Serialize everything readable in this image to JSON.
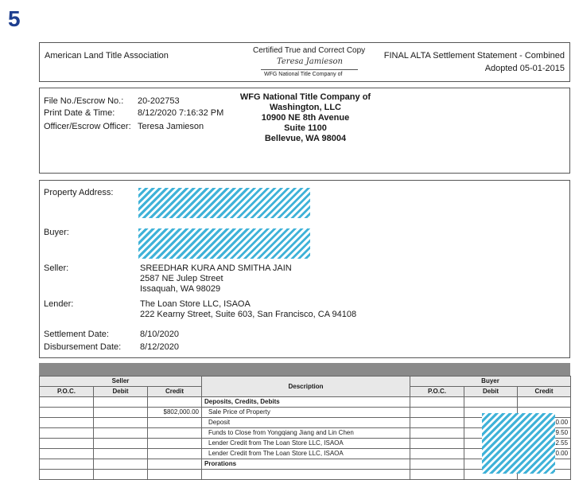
{
  "page_number": "5",
  "header": {
    "org": "American Land Title Association",
    "cert_title": "Certified True and Correct Copy",
    "cert_signature": "Teresa Jamieson",
    "cert_company": "WFG National Title Company of",
    "statement_title": "FINAL ALTA Settlement Statement - Combined",
    "adopted": "Adopted 05-01-2015"
  },
  "file_info": {
    "file_no_label": "File No./Escrow No.:",
    "file_no": "20-202753",
    "print_date_label": "Print Date & Time:",
    "print_date": "8/12/2020 7:16:32 PM",
    "officer_label": "Officer/Escrow Officer:",
    "officer": "Teresa Jamieson"
  },
  "title_company": {
    "line1": "WFG National Title Company of",
    "line2": "Washington, LLC",
    "line3": "10900 NE 8th Avenue",
    "line4": "Suite 1100",
    "line5": "Bellevue, WA 98004"
  },
  "parties": {
    "property_label": "Property Address:",
    "buyer_label": "Buyer:",
    "seller_label": "Seller:",
    "seller_line1": "SREEDHAR KURA AND SMITHA JAIN",
    "seller_line2": "2587 NE Julep Street",
    "seller_line3": "Issaquah, WA 98029",
    "lender_label": "Lender:",
    "lender_line1": "The Loan Store LLC, ISAOA",
    "lender_line2": "222 Kearny Street, Suite 603, San Francisco, CA  94108",
    "settlement_label": "Settlement Date:",
    "settlement_date": "8/10/2020",
    "disbursement_label": "Disbursement Date:",
    "disbursement_date": "8/12/2020"
  },
  "table": {
    "seller_header": "Seller",
    "description_header": "Description",
    "buyer_header": "Buyer",
    "poc": "P.O.C.",
    "debit": "Debit",
    "credit": "Credit",
    "rows": [
      {
        "s_credit": "",
        "desc": "Deposits, Credits, Debits",
        "b_credit": "",
        "section": true
      },
      {
        "s_credit": "$802,000.00",
        "desc": "Sale Price of Property",
        "b_credit": "",
        "section": false
      },
      {
        "s_credit": "",
        "desc": "Deposit",
        "b_credit": "0.00",
        "section": false
      },
      {
        "s_credit": "",
        "desc": "Funds to Close from Yongqiang Jiang and Lin Chen",
        "b_credit": "9.50",
        "section": false
      },
      {
        "s_credit": "",
        "desc": "Lender Credit from The Loan Store LLC, ISAOA",
        "b_credit": "2.55",
        "section": false
      },
      {
        "s_credit": "",
        "desc": "Lender Credit from The Loan Store LLC, ISAOA",
        "b_credit": "0.00",
        "section": false
      },
      {
        "s_credit": "",
        "desc": "Prorations",
        "b_credit": "",
        "section": true
      }
    ]
  }
}
